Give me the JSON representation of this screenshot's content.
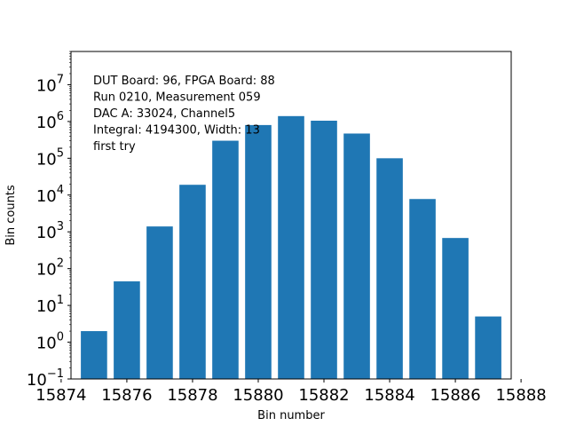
{
  "chart_data": {
    "type": "bar",
    "title": "",
    "xlabel": "Bin number",
    "ylabel": "Bin counts",
    "yscale": "log",
    "x": [
      15875,
      15876,
      15877,
      15878,
      15879,
      15880,
      15881,
      15882,
      15883,
      15884,
      15885,
      15886,
      15887
    ],
    "values": [
      2,
      45,
      1400,
      19000,
      300000,
      800000,
      1400000,
      1050000,
      470000,
      100000,
      7800,
      680,
      5
    ],
    "xlim": [
      15874.3,
      15887.7
    ],
    "ylim": [
      0.1,
      80000000
    ],
    "xticks": [
      15874,
      15876,
      15878,
      15880,
      15882,
      15884,
      15886,
      15888
    ],
    "xtick_labels": [
      "15874",
      "15876",
      "15878",
      "15880",
      "15882",
      "15884",
      "15886",
      "15888"
    ],
    "yticks": [
      {
        "exp": -1,
        "label": "10",
        "sup": "−1"
      },
      {
        "exp": 0,
        "label": "10",
        "sup": "0"
      },
      {
        "exp": 1,
        "label": "10",
        "sup": "1"
      },
      {
        "exp": 2,
        "label": "10",
        "sup": "2"
      },
      {
        "exp": 3,
        "label": "10",
        "sup": "3"
      },
      {
        "exp": 4,
        "label": "10",
        "sup": "4"
      },
      {
        "exp": 5,
        "label": "10",
        "sup": "5"
      },
      {
        "exp": 6,
        "label": "10",
        "sup": "6"
      },
      {
        "exp": 7,
        "label": "10",
        "sup": "7"
      }
    ],
    "bar_color": "#1f77b4",
    "grid": false,
    "annotations": [
      "DUT Board: 96, FPGA Board: 88",
      "Run 0210, Measurement 059",
      "DAC A: 33024, Channel5",
      "Integral: 4194300, Width: 13",
      "first try"
    ]
  }
}
